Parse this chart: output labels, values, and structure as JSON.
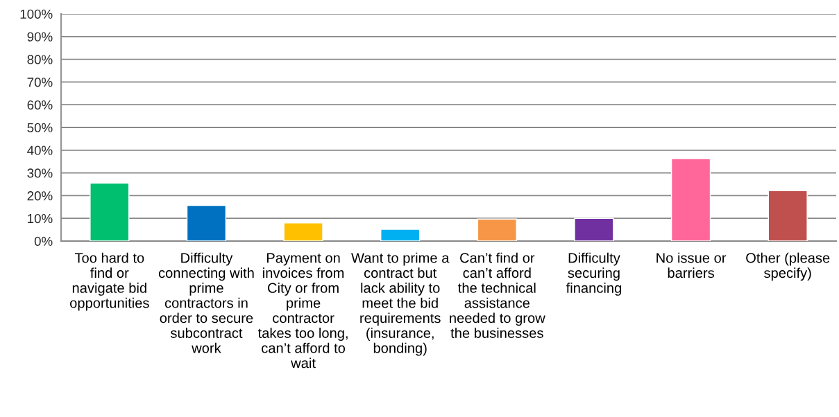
{
  "chart_data": {
    "type": "bar",
    "categories": [
      "Too hard to find or navigate bid opportunities",
      "Difficulty connecting with prime contractors in order to secure subcontract work",
      "Payment on invoices from City or from prime contractor takes too long, can’t afford to wait",
      "Want to prime a contract but lack ability to meet the bid requirements (insurance, bonding)",
      "Can’t find or can’t afford the technical assistance needed to grow the businesses",
      "Difficulty securing financing",
      "No issue or barriers",
      "Other (please specify)"
    ],
    "values": [
      25.5,
      15.7,
      8.0,
      5.2,
      9.7,
      10.0,
      36.3,
      22.2
    ],
    "colors": [
      "#00bf6f",
      "#0070c0",
      "#ffc000",
      "#00b0f0",
      "#f79646",
      "#7030a0",
      "#ff6699",
      "#c0504d"
    ],
    "ylim": [
      0,
      100
    ],
    "yticks": [
      {
        "value": 0,
        "label": "0%"
      },
      {
        "value": 10,
        "label": "10%"
      },
      {
        "value": 20,
        "label": "20%"
      },
      {
        "value": 30,
        "label": "30%"
      },
      {
        "value": 40,
        "label": "40%"
      },
      {
        "value": 50,
        "label": "50%"
      },
      {
        "value": 60,
        "label": "60%"
      },
      {
        "value": 70,
        "label": "70%"
      },
      {
        "value": 80,
        "label": "80%"
      },
      {
        "value": 90,
        "label": "90%"
      },
      {
        "value": 100,
        "label": "100%"
      }
    ],
    "grid": "y"
  }
}
